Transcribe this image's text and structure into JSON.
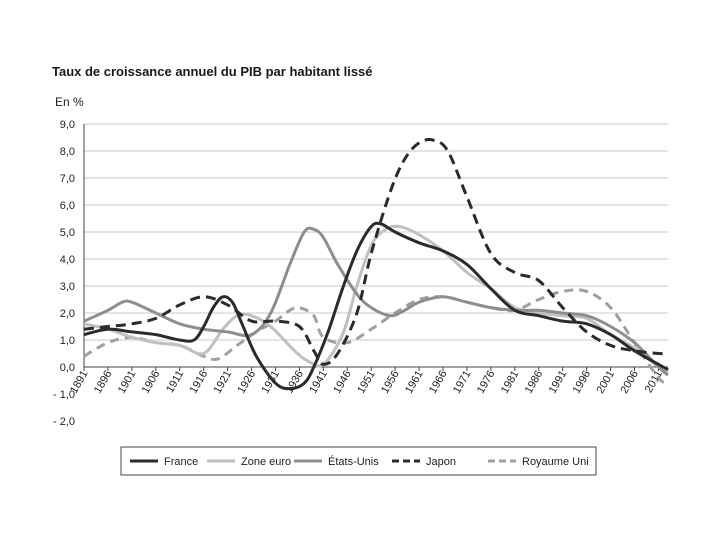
{
  "chart_data": {
    "type": "line",
    "title": "Taux de croissance annuel du PIB par habitant lissé",
    "ylabel": "En %",
    "xlabel": "",
    "ylim": [
      -2,
      9
    ],
    "yticks": [
      "9,0",
      "8,0",
      "7,0",
      "6,0",
      "5,0",
      "4,0",
      "3,0",
      "2,0",
      "1,0",
      "0,0",
      "- 1,0",
      "- 2,0"
    ],
    "ytick_values": [
      9,
      8,
      7,
      6,
      5,
      4,
      3,
      2,
      1,
      0,
      -1,
      -2
    ],
    "xlim": [
      1891,
      2013
    ],
    "categories": [
      "1891",
      "1896",
      "1901",
      "1906",
      "1911",
      "1916",
      "1921",
      "1926",
      "1931",
      "1936",
      "1941",
      "1946",
      "1951",
      "1956",
      "1961",
      "1966",
      "1971",
      "1976",
      "1981",
      "1986",
      "1991",
      "1996",
      "2001",
      "2006",
      "2011"
    ],
    "grid": true,
    "legend_position": "bottom",
    "series": [
      {
        "name": "France",
        "style": "solid-dark",
        "x": [
          1891,
          1896,
          1901,
          1906,
          1911,
          1914,
          1916,
          1918,
          1920,
          1922,
          1924,
          1927,
          1931,
          1934,
          1937,
          1939,
          1942,
          1945,
          1948,
          1951,
          1953,
          1956,
          1961,
          1966,
          1971,
          1976,
          1981,
          1986,
          1991,
          1996,
          2001,
          2006,
          2011,
          2013
        ],
        "values": [
          1.2,
          1.4,
          1.3,
          1.2,
          1.0,
          1.0,
          1.5,
          2.2,
          2.6,
          2.4,
          1.6,
          0.4,
          -0.6,
          -0.8,
          -0.6,
          0.0,
          1.3,
          2.9,
          4.3,
          5.2,
          5.3,
          5.0,
          4.6,
          4.3,
          3.8,
          2.9,
          2.1,
          1.9,
          1.7,
          1.6,
          1.2,
          0.6,
          0.1,
          -0.1
        ]
      },
      {
        "name": "Zone euro",
        "style": "solid-light",
        "x": [
          1891,
          1896,
          1901,
          1906,
          1911,
          1916,
          1920,
          1923,
          1926,
          1930,
          1935,
          1938,
          1941,
          1945,
          1948,
          1951,
          1954,
          1957,
          1961,
          1966,
          1971,
          1976,
          1981,
          1986,
          1991,
          1996,
          2001,
          2006,
          2011,
          2013
        ],
        "values": [
          1.6,
          1.4,
          1.1,
          0.9,
          0.8,
          0.5,
          1.4,
          1.9,
          1.9,
          1.5,
          0.6,
          0.2,
          0.1,
          1.2,
          3.0,
          4.5,
          5.1,
          5.2,
          4.9,
          4.3,
          3.5,
          2.9,
          2.2,
          2.0,
          1.9,
          1.8,
          1.2,
          0.7,
          0.0,
          -0.2
        ]
      },
      {
        "name": "États-Unis",
        "style": "solid-mid",
        "x": [
          1891,
          1896,
          1899,
          1901,
          1906,
          1911,
          1916,
          1921,
          1926,
          1930,
          1934,
          1937,
          1939,
          1941,
          1944,
          1948,
          1951,
          1955,
          1958,
          1961,
          1966,
          1971,
          1976,
          1981,
          1986,
          1991,
          1996,
          2001,
          2006,
          2011,
          2013
        ],
        "values": [
          1.7,
          2.1,
          2.4,
          2.4,
          2.0,
          1.6,
          1.4,
          1.3,
          1.2,
          2.0,
          3.8,
          5.0,
          5.1,
          4.8,
          3.8,
          2.7,
          2.2,
          1.9,
          2.1,
          2.4,
          2.6,
          2.4,
          2.2,
          2.1,
          2.1,
          2.0,
          1.9,
          1.5,
          0.9,
          0.0,
          -0.3
        ]
      },
      {
        "name": "Japon",
        "style": "dashed-dark",
        "x": [
          1891,
          1896,
          1901,
          1906,
          1911,
          1916,
          1921,
          1926,
          1931,
          1936,
          1939,
          1941,
          1944,
          1948,
          1951,
          1955,
          1958,
          1961,
          1964,
          1967,
          1971,
          1976,
          1981,
          1986,
          1991,
          1996,
          2001,
          2006,
          2011,
          2013
        ],
        "values": [
          1.4,
          1.5,
          1.6,
          1.8,
          2.3,
          2.6,
          2.3,
          1.7,
          1.7,
          1.5,
          0.6,
          0.1,
          0.5,
          2.0,
          4.2,
          6.5,
          7.7,
          8.3,
          8.4,
          8.0,
          6.3,
          4.2,
          3.5,
          3.2,
          2.2,
          1.3,
          0.8,
          0.6,
          0.5,
          0.5
        ]
      },
      {
        "name": "Royaume Uni",
        "style": "dashed-light",
        "x": [
          1891,
          1896,
          1901,
          1906,
          1911,
          1916,
          1919,
          1923,
          1927,
          1931,
          1934,
          1936,
          1939,
          1941,
          1946,
          1951,
          1956,
          1961,
          1966,
          1971,
          1976,
          1981,
          1986,
          1991,
          1996,
          2001,
          2006,
          2011,
          2013
        ],
        "values": [
          0.4,
          0.9,
          1.1,
          0.9,
          0.8,
          0.4,
          0.3,
          0.8,
          1.3,
          1.7,
          2.1,
          2.2,
          1.9,
          1.1,
          0.9,
          1.4,
          2.0,
          2.5,
          2.6,
          2.4,
          2.2,
          2.1,
          2.5,
          2.8,
          2.8,
          2.2,
          0.9,
          -0.4,
          -0.6
        ]
      }
    ]
  }
}
